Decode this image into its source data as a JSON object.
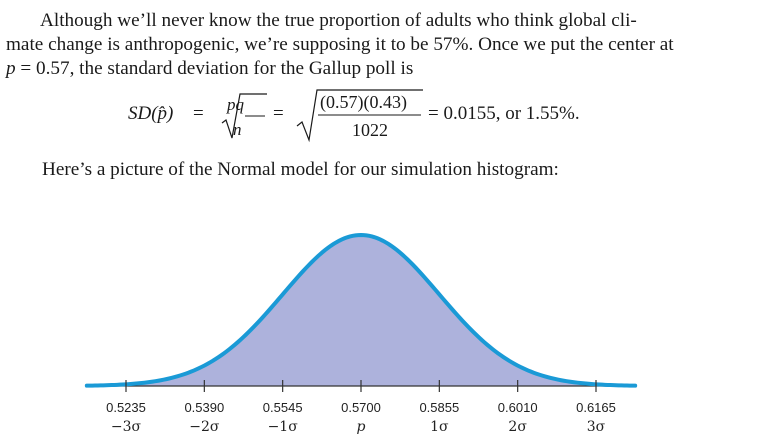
{
  "paragraph": {
    "line1": "Although we’ll never know the true proportion of adults who think global cli-",
    "line2": "mate change is anthropogenic, we’re supposing it to be 57%. Once we put the center at",
    "line3_var": "p",
    "line3_rest": " = 0.57, the standard deviation for the Gallup poll is"
  },
  "formula": {
    "lhs": "SD(p̂)",
    "eq1": "=",
    "sqrt_num": "pq",
    "sqrt_den": "n",
    "eq2": "=",
    "num": "(0.57)(0.43)",
    "den": "1022",
    "result": "= 0.0155, or 1.55%."
  },
  "intro": "Here’s a picture of the Normal model for our simulation histogram:",
  "chart_data": {
    "type": "area",
    "mean": 0.57,
    "sd": 0.0155,
    "xlim": [
      0.5235,
      0.6165
    ],
    "ticks": [
      "0.5235",
      "0.5390",
      "0.5545",
      "0.5700",
      "0.5855",
      "0.6010",
      "0.6165"
    ],
    "tick_values": [
      0.5235,
      0.539,
      0.5545,
      0.57,
      0.5855,
      0.601,
      0.6165
    ],
    "sigma_labels": [
      "−3σ",
      "−2σ",
      "−1σ",
      "p",
      "1σ",
      "2σ",
      "3σ"
    ],
    "fill_color": "#adb2dc",
    "curve_color": "#1a9ad6",
    "axis_color": "#333333"
  }
}
